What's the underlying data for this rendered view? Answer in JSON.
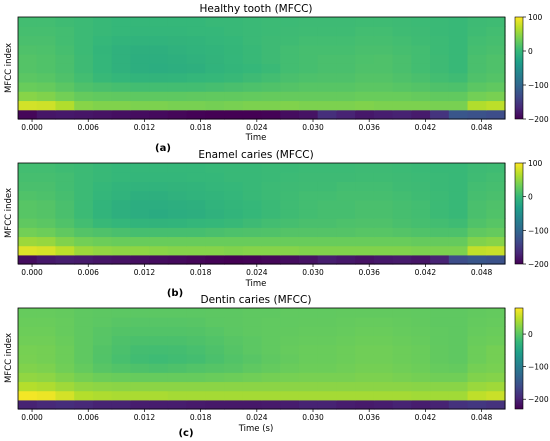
{
  "colormap": [
    "#440154",
    "#482878",
    "#3e4a89",
    "#31688e",
    "#26828e",
    "#1f9e89",
    "#35b779",
    "#6ece58",
    "#b5de2b",
    "#fde725"
  ],
  "chart_data": [
    {
      "type": "heatmap",
      "title": "Healthy tooth (MFCC)",
      "xlabel": "Time",
      "ylabel": "MFCC index",
      "panel_label": "(a)",
      "xlim": [
        -0.0015,
        0.0505
      ],
      "x_ticks": [
        "0.000",
        "0.006",
        "0.012",
        "0.018",
        "0.024",
        "0.030",
        "0.036",
        "0.042",
        "0.048"
      ],
      "clim": [
        -200,
        100
      ],
      "colorbar_ticks": [
        "100",
        "0",
        "−100",
        "−200"
      ],
      "rows": [
        [
          -195,
          -182,
          -180,
          -182,
          -185,
          -188,
          -190,
          -192,
          -195,
          -198,
          -200,
          -205,
          -202,
          -198,
          -190,
          -185,
          -160,
          -170,
          -180,
          -175,
          -172,
          -178,
          -155,
          -120,
          -125,
          -130
        ],
        [
          80,
          78,
          65,
          45,
          42,
          42,
          40,
          40,
          38,
          38,
          36,
          38,
          40,
          40,
          42,
          40,
          40,
          40,
          42,
          40,
          40,
          40,
          38,
          38,
          65,
          70
        ],
        [
          45,
          42,
          35,
          28,
          26,
          25,
          24,
          24,
          24,
          25,
          26,
          26,
          27,
          28,
          28,
          28,
          28,
          28,
          30,
          30,
          30,
          28,
          26,
          26,
          35,
          38
        ],
        [
          30,
          28,
          22,
          15,
          12,
          10,
          8,
          8,
          8,
          8,
          10,
          12,
          14,
          16,
          18,
          20,
          20,
          20,
          22,
          22,
          20,
          18,
          15,
          14,
          22,
          25
        ],
        [
          22,
          20,
          15,
          8,
          2,
          -2,
          -4,
          -5,
          -4,
          -2,
          0,
          2,
          5,
          8,
          12,
          14,
          15,
          15,
          18,
          18,
          15,
          12,
          8,
          6,
          15,
          18
        ],
        [
          18,
          16,
          12,
          5,
          -2,
          -8,
          -12,
          -14,
          -12,
          -10,
          -6,
          -3,
          0,
          3,
          8,
          10,
          12,
          12,
          15,
          15,
          12,
          8,
          5,
          2,
          12,
          15
        ],
        [
          18,
          16,
          12,
          5,
          -2,
          -8,
          -12,
          -12,
          -10,
          -8,
          -5,
          -2,
          2,
          5,
          8,
          10,
          12,
          12,
          14,
          15,
          12,
          8,
          5,
          2,
          12,
          15
        ],
        [
          15,
          14,
          10,
          4,
          -3,
          -8,
          -10,
          -10,
          -8,
          -6,
          -4,
          -1,
          2,
          5,
          8,
          10,
          10,
          10,
          12,
          12,
          10,
          8,
          4,
          2,
          10,
          12
        ],
        [
          12,
          12,
          8,
          4,
          0,
          -4,
          -6,
          -6,
          -5,
          -4,
          -2,
          0,
          3,
          5,
          6,
          8,
          8,
          8,
          10,
          10,
          8,
          6,
          4,
          2,
          8,
          10
        ],
        [
          10,
          10,
          8,
          4,
          2,
          0,
          -2,
          -2,
          -2,
          0,
          0,
          2,
          3,
          4,
          5,
          6,
          6,
          6,
          8,
          8,
          6,
          5,
          3,
          2,
          6,
          8
        ],
        [
          8,
          8,
          6,
          4,
          2,
          0,
          0,
          0,
          0,
          0,
          2,
          2,
          3,
          4,
          4,
          5,
          5,
          5,
          6,
          6,
          5,
          4,
          3,
          2,
          5,
          6
        ]
      ]
    },
    {
      "type": "heatmap",
      "title": "Enamel caries (MFCC)",
      "xlabel": "Time",
      "ylabel": "MFCC index",
      "panel_label": "(b)",
      "xlim": [
        -0.0015,
        0.0505
      ],
      "x_ticks": [
        "0.000",
        "0.006",
        "0.012",
        "0.018",
        "0.024",
        "0.030",
        "0.036",
        "0.042",
        "0.048"
      ],
      "clim": [
        -200,
        100
      ],
      "colorbar_ticks": [
        "100",
        "0",
        "−100",
        "−200"
      ],
      "rows": [
        [
          -190,
          -180,
          -175,
          -178,
          -182,
          -185,
          -188,
          -190,
          -192,
          -195,
          -198,
          -200,
          -198,
          -195,
          -190,
          -185,
          -175,
          -180,
          -185,
          -180,
          -178,
          -182,
          -170,
          -130,
          -120,
          -125
        ],
        [
          85,
          82,
          70,
          55,
          50,
          48,
          48,
          46,
          44,
          44,
          44,
          42,
          44,
          44,
          44,
          42,
          42,
          42,
          42,
          42,
          42,
          40,
          40,
          40,
          72,
          75
        ],
        [
          55,
          52,
          42,
          35,
          32,
          30,
          30,
          30,
          30,
          30,
          30,
          30,
          30,
          30,
          30,
          30,
          30,
          30,
          30,
          30,
          30,
          28,
          28,
          28,
          42,
          45
        ],
        [
          35,
          32,
          25,
          18,
          15,
          12,
          10,
          10,
          10,
          10,
          12,
          14,
          15,
          16,
          18,
          18,
          18,
          18,
          20,
          20,
          18,
          16,
          14,
          14,
          25,
          28
        ],
        [
          25,
          22,
          16,
          8,
          2,
          -2,
          -4,
          -5,
          -4,
          -2,
          0,
          2,
          5,
          8,
          10,
          12,
          12,
          14,
          15,
          15,
          12,
          10,
          8,
          6,
          16,
          20
        ],
        [
          20,
          18,
          12,
          4,
          -4,
          -10,
          -14,
          -16,
          -14,
          -12,
          -8,
          -4,
          0,
          3,
          6,
          8,
          10,
          10,
          12,
          12,
          10,
          8,
          4,
          2,
          12,
          16
        ],
        [
          20,
          18,
          12,
          4,
          -4,
          -10,
          -14,
          -14,
          -12,
          -10,
          -6,
          -3,
          0,
          3,
          6,
          8,
          10,
          10,
          12,
          12,
          10,
          8,
          4,
          2,
          12,
          15
        ],
        [
          16,
          14,
          10,
          4,
          -2,
          -6,
          -10,
          -10,
          -8,
          -6,
          -4,
          -2,
          2,
          4,
          6,
          8,
          8,
          10,
          10,
          10,
          8,
          6,
          4,
          2,
          10,
          12
        ],
        [
          12,
          12,
          8,
          4,
          0,
          -4,
          -6,
          -6,
          -5,
          -4,
          -2,
          0,
          2,
          4,
          5,
          6,
          6,
          8,
          8,
          8,
          6,
          5,
          3,
          2,
          8,
          10
        ],
        [
          10,
          10,
          8,
          4,
          2,
          0,
          -2,
          -2,
          -2,
          0,
          0,
          2,
          2,
          3,
          4,
          5,
          5,
          5,
          6,
          6,
          5,
          4,
          3,
          2,
          6,
          8
        ],
        [
          8,
          8,
          6,
          4,
          2,
          0,
          0,
          0,
          0,
          0,
          1,
          2,
          2,
          3,
          3,
          4,
          4,
          4,
          5,
          5,
          4,
          3,
          2,
          2,
          5,
          6
        ]
      ]
    },
    {
      "type": "heatmap",
      "title": "Dentin caries (MFCC)",
      "xlabel": "Time (s)",
      "ylabel": "MFCC index",
      "panel_label": "(c)",
      "xlim": [
        -0.0015,
        0.0505
      ],
      "x_ticks": [
        "0.000",
        "0.006",
        "0.012",
        "0.018",
        "0.024",
        "0.030",
        "0.036",
        "0.042",
        "0.048"
      ],
      "clim": [
        -230,
        80
      ],
      "colorbar_ticks": [
        "0",
        "−100",
        "−200"
      ],
      "rows": [
        [
          -200,
          -195,
          -190,
          -195,
          -200,
          -200,
          -205,
          -205,
          -205,
          -208,
          -210,
          -210,
          -210,
          -208,
          -205,
          -200,
          -200,
          -205,
          -208,
          -205,
          -200,
          -205,
          -200,
          -185,
          -180,
          -185
        ],
        [
          75,
          72,
          60,
          45,
          42,
          40,
          40,
          40,
          38,
          38,
          38,
          38,
          38,
          38,
          38,
          38,
          38,
          38,
          38,
          38,
          38,
          36,
          36,
          36,
          50,
          55
        ],
        [
          45,
          42,
          35,
          28,
          26,
          25,
          25,
          25,
          25,
          25,
          25,
          25,
          25,
          25,
          25,
          25,
          25,
          25,
          25,
          25,
          25,
          24,
          24,
          24,
          32,
          35
        ],
        [
          28,
          26,
          20,
          14,
          10,
          8,
          6,
          6,
          6,
          6,
          8,
          10,
          12,
          14,
          15,
          16,
          16,
          16,
          18,
          18,
          16,
          14,
          12,
          12,
          20,
          22
        ],
        [
          20,
          18,
          12,
          5,
          -2,
          -6,
          -8,
          -10,
          -8,
          -6,
          -4,
          -2,
          2,
          5,
          8,
          10,
          10,
          12,
          14,
          14,
          12,
          10,
          6,
          5,
          14,
          16
        ],
        [
          16,
          14,
          10,
          2,
          -6,
          -12,
          -16,
          -18,
          -16,
          -14,
          -10,
          -6,
          -2,
          2,
          5,
          8,
          8,
          10,
          12,
          12,
          10,
          8,
          4,
          2,
          10,
          14
        ],
        [
          15,
          14,
          10,
          2,
          -5,
          -10,
          -14,
          -15,
          -14,
          -12,
          -8,
          -4,
          0,
          3,
          6,
          8,
          8,
          10,
          12,
          12,
          10,
          8,
          4,
          2,
          10,
          14
        ],
        [
          12,
          12,
          8,
          2,
          -3,
          -8,
          -10,
          -10,
          -10,
          -8,
          -6,
          -2,
          0,
          3,
          5,
          6,
          6,
          8,
          10,
          10,
          8,
          6,
          3,
          2,
          8,
          10
        ],
        [
          10,
          10,
          6,
          2,
          -2,
          -5,
          -6,
          -6,
          -6,
          -5,
          -3,
          0,
          2,
          3,
          4,
          5,
          5,
          6,
          8,
          8,
          6,
          5,
          3,
          2,
          6,
          8
        ],
        [
          8,
          8,
          6,
          2,
          0,
          -2,
          -3,
          -3,
          -3,
          -2,
          0,
          1,
          2,
          3,
          3,
          4,
          4,
          5,
          6,
          6,
          5,
          4,
          2,
          2,
          5,
          6
        ],
        [
          6,
          6,
          5,
          2,
          1,
          0,
          0,
          0,
          0,
          0,
          1,
          1,
          2,
          2,
          3,
          3,
          3,
          4,
          4,
          4,
          4,
          3,
          2,
          2,
          4,
          5
        ]
      ]
    }
  ]
}
